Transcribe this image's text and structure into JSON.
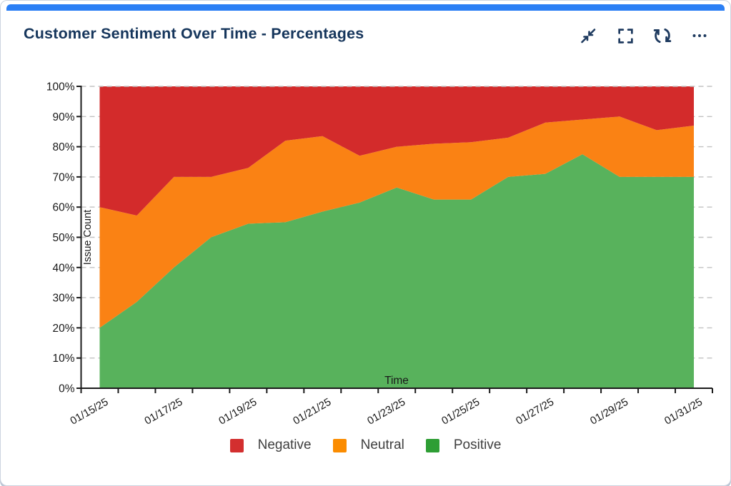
{
  "card": {
    "title": "Customer Sentiment Over Time - Percentages",
    "accent_color": "#2b7ff5",
    "title_color": "#16365c",
    "toolbar": {
      "collapse_icon": "collapse-arrows",
      "fullscreen_icon": "fullscreen-brackets",
      "refresh_icon": "refresh-arrows",
      "more_icon": "ellipsis"
    }
  },
  "chart_data": {
    "type": "area",
    "stacked": true,
    "percentage": true,
    "title": "Customer Sentiment Over Time - Percentages",
    "xlabel": "Time",
    "ylabel": "Issue Count",
    "ylim": [
      0,
      100
    ],
    "ytick_labels": [
      "0%",
      "10%",
      "20%",
      "30%",
      "40%",
      "50%",
      "60%",
      "70%",
      "80%",
      "90%",
      "100%"
    ],
    "grid": "dashed-horizontal",
    "legend_position": "bottom",
    "categories": [
      "01/15/25",
      "01/16/25",
      "01/17/25",
      "01/18/25",
      "01/19/25",
      "01/20/25",
      "01/21/25",
      "01/22/25",
      "01/23/25",
      "01/24/25",
      "01/25/25",
      "01/26/25",
      "01/27/25",
      "01/28/25",
      "01/29/25",
      "01/30/25",
      "01/31/25"
    ],
    "xtick_labels_shown": [
      "01/15/25",
      "01/17/25",
      "01/19/25",
      "01/21/25",
      "01/23/25",
      "01/25/25",
      "01/27/25",
      "01/29/25",
      "01/31/25"
    ],
    "series": [
      {
        "name": "Negative",
        "color": "#d32f2f",
        "fill": "#d32b2b",
        "values": [
          40,
          42.8,
          30,
          30,
          27,
          18,
          16.5,
          23,
          20,
          19,
          18.5,
          17,
          12,
          11,
          10,
          14.5,
          13
        ]
      },
      {
        "name": "Neutral",
        "color": "#fb8c00",
        "fill": "#fa8214",
        "values": [
          40,
          28.6,
          30,
          20,
          18.5,
          27,
          25,
          15.5,
          13.5,
          18.5,
          19,
          13,
          17,
          11.5,
          20,
          15.5,
          17
        ]
      },
      {
        "name": "Positive",
        "color": "#2e9e34",
        "fill": "#58b25c",
        "values": [
          20,
          28.6,
          40,
          50,
          54.5,
          55,
          58.5,
          61.5,
          66.5,
          62.5,
          62.5,
          70,
          71,
          77.5,
          70,
          70,
          70
        ]
      }
    ],
    "stack_order_bottom_to_top": [
      "Positive",
      "Neutral",
      "Negative"
    ]
  }
}
